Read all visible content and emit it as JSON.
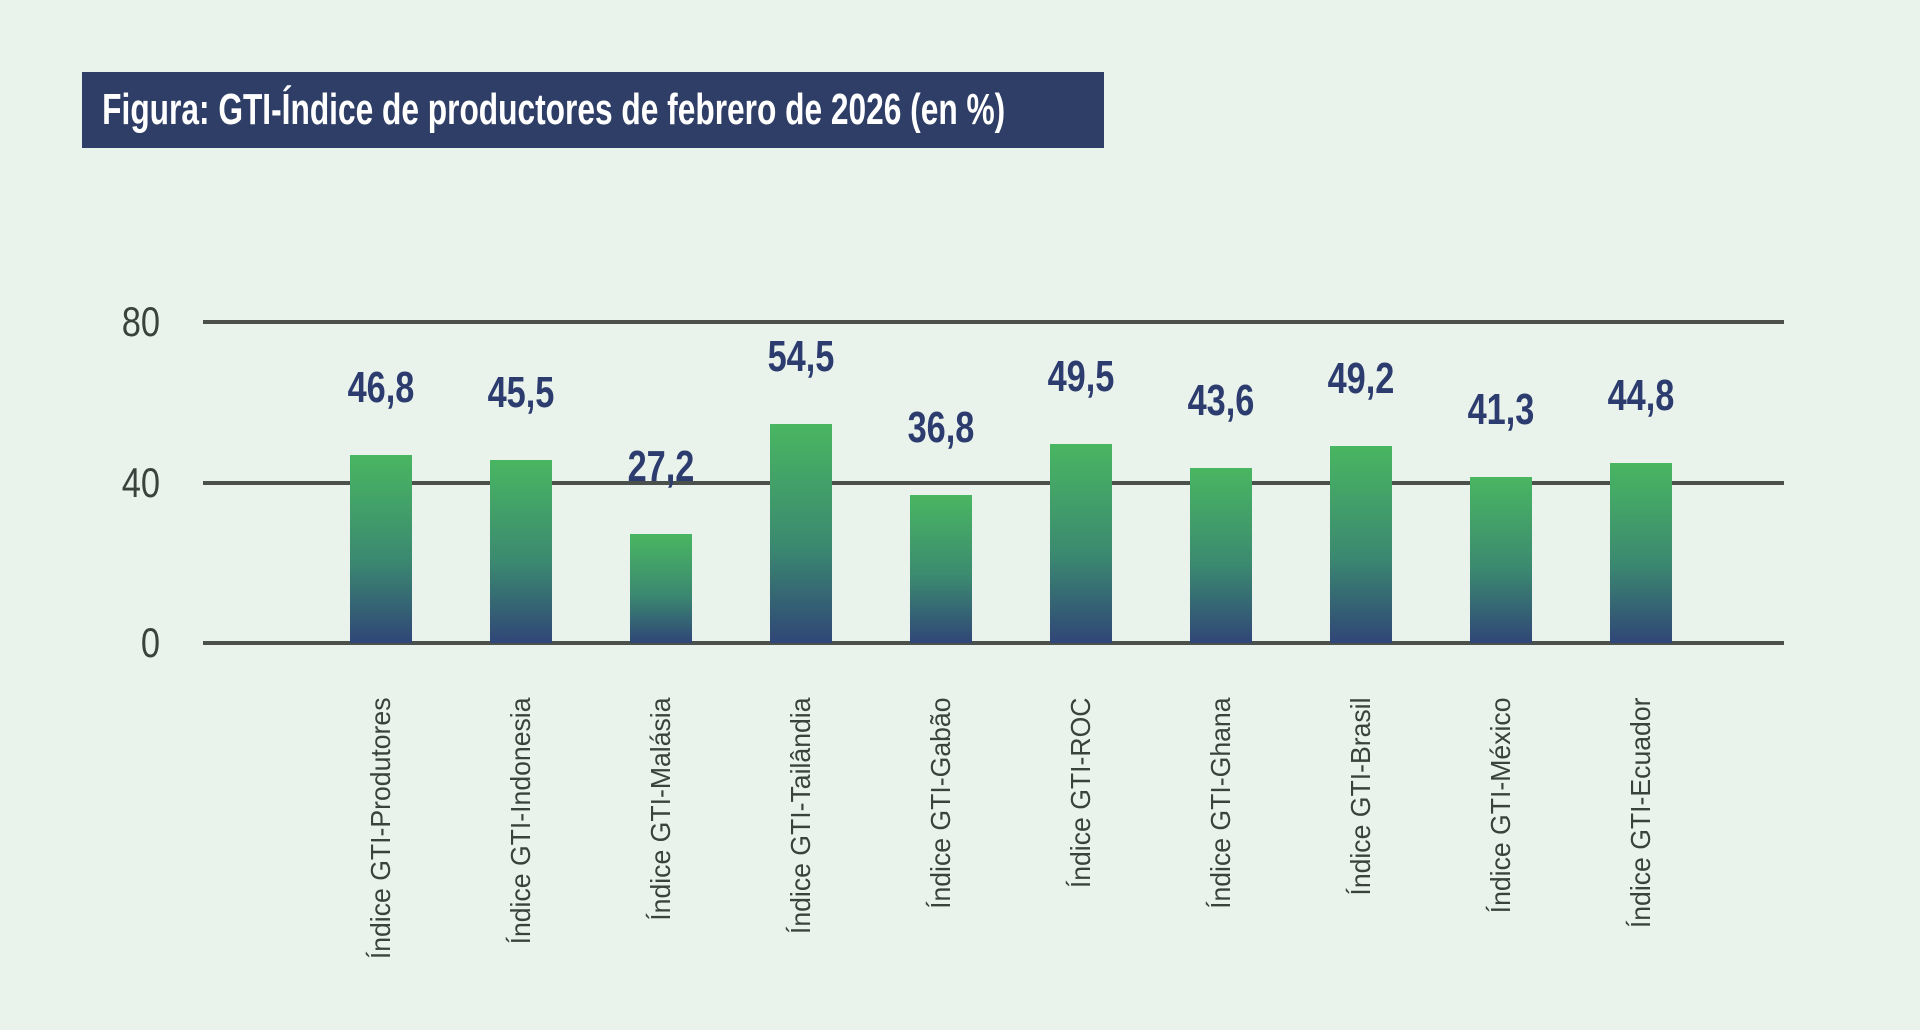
{
  "title": {
    "text": "Figura: GTI-Índice de productores de febrero de 2026 (en %)"
  },
  "colors": {
    "background": "#e9f3ec",
    "title_bg": "#2f3e66",
    "title_text": "#ffffff",
    "value_label": "#2d3c6e",
    "bar_gradient_top": "#49b661",
    "bar_gradient_bottom": "#304677",
    "gridline": "#4b504d",
    "axis_text": "#3a423e"
  },
  "chart_data": {
    "type": "bar",
    "title": "Figura: GTI-Índice de productores de febrero de 2026 (en %)",
    "categories": [
      "Índice GTI-Produtores",
      "Índice GTI-Indonesia",
      "Índice GTI-Malásia",
      "Índice GTI-Tailândia",
      "Índice GTI-Gabão",
      "Índice GTI-ROC",
      "Índice GTI-Ghana",
      "Índice GTI-Brasil",
      "Índice GTI-México",
      "Índice GTI-Ecuador"
    ],
    "values": [
      46.8,
      45.5,
      27.2,
      54.5,
      36.8,
      49.5,
      43.6,
      49.2,
      41.3,
      44.8
    ],
    "value_labels": [
      "46,8",
      "45,5",
      "27,2",
      "54,5",
      "36,8",
      "49,5",
      "43,6",
      "49,2",
      "41,3",
      "44,8"
    ],
    "xlabel": "",
    "ylabel": "",
    "yticks": [
      0,
      40,
      80
    ],
    "ylim": [
      0,
      80
    ],
    "grid": "horizontal",
    "legend": "none",
    "bar_orientation": "vertical",
    "category_label_rotation_deg": -90
  }
}
